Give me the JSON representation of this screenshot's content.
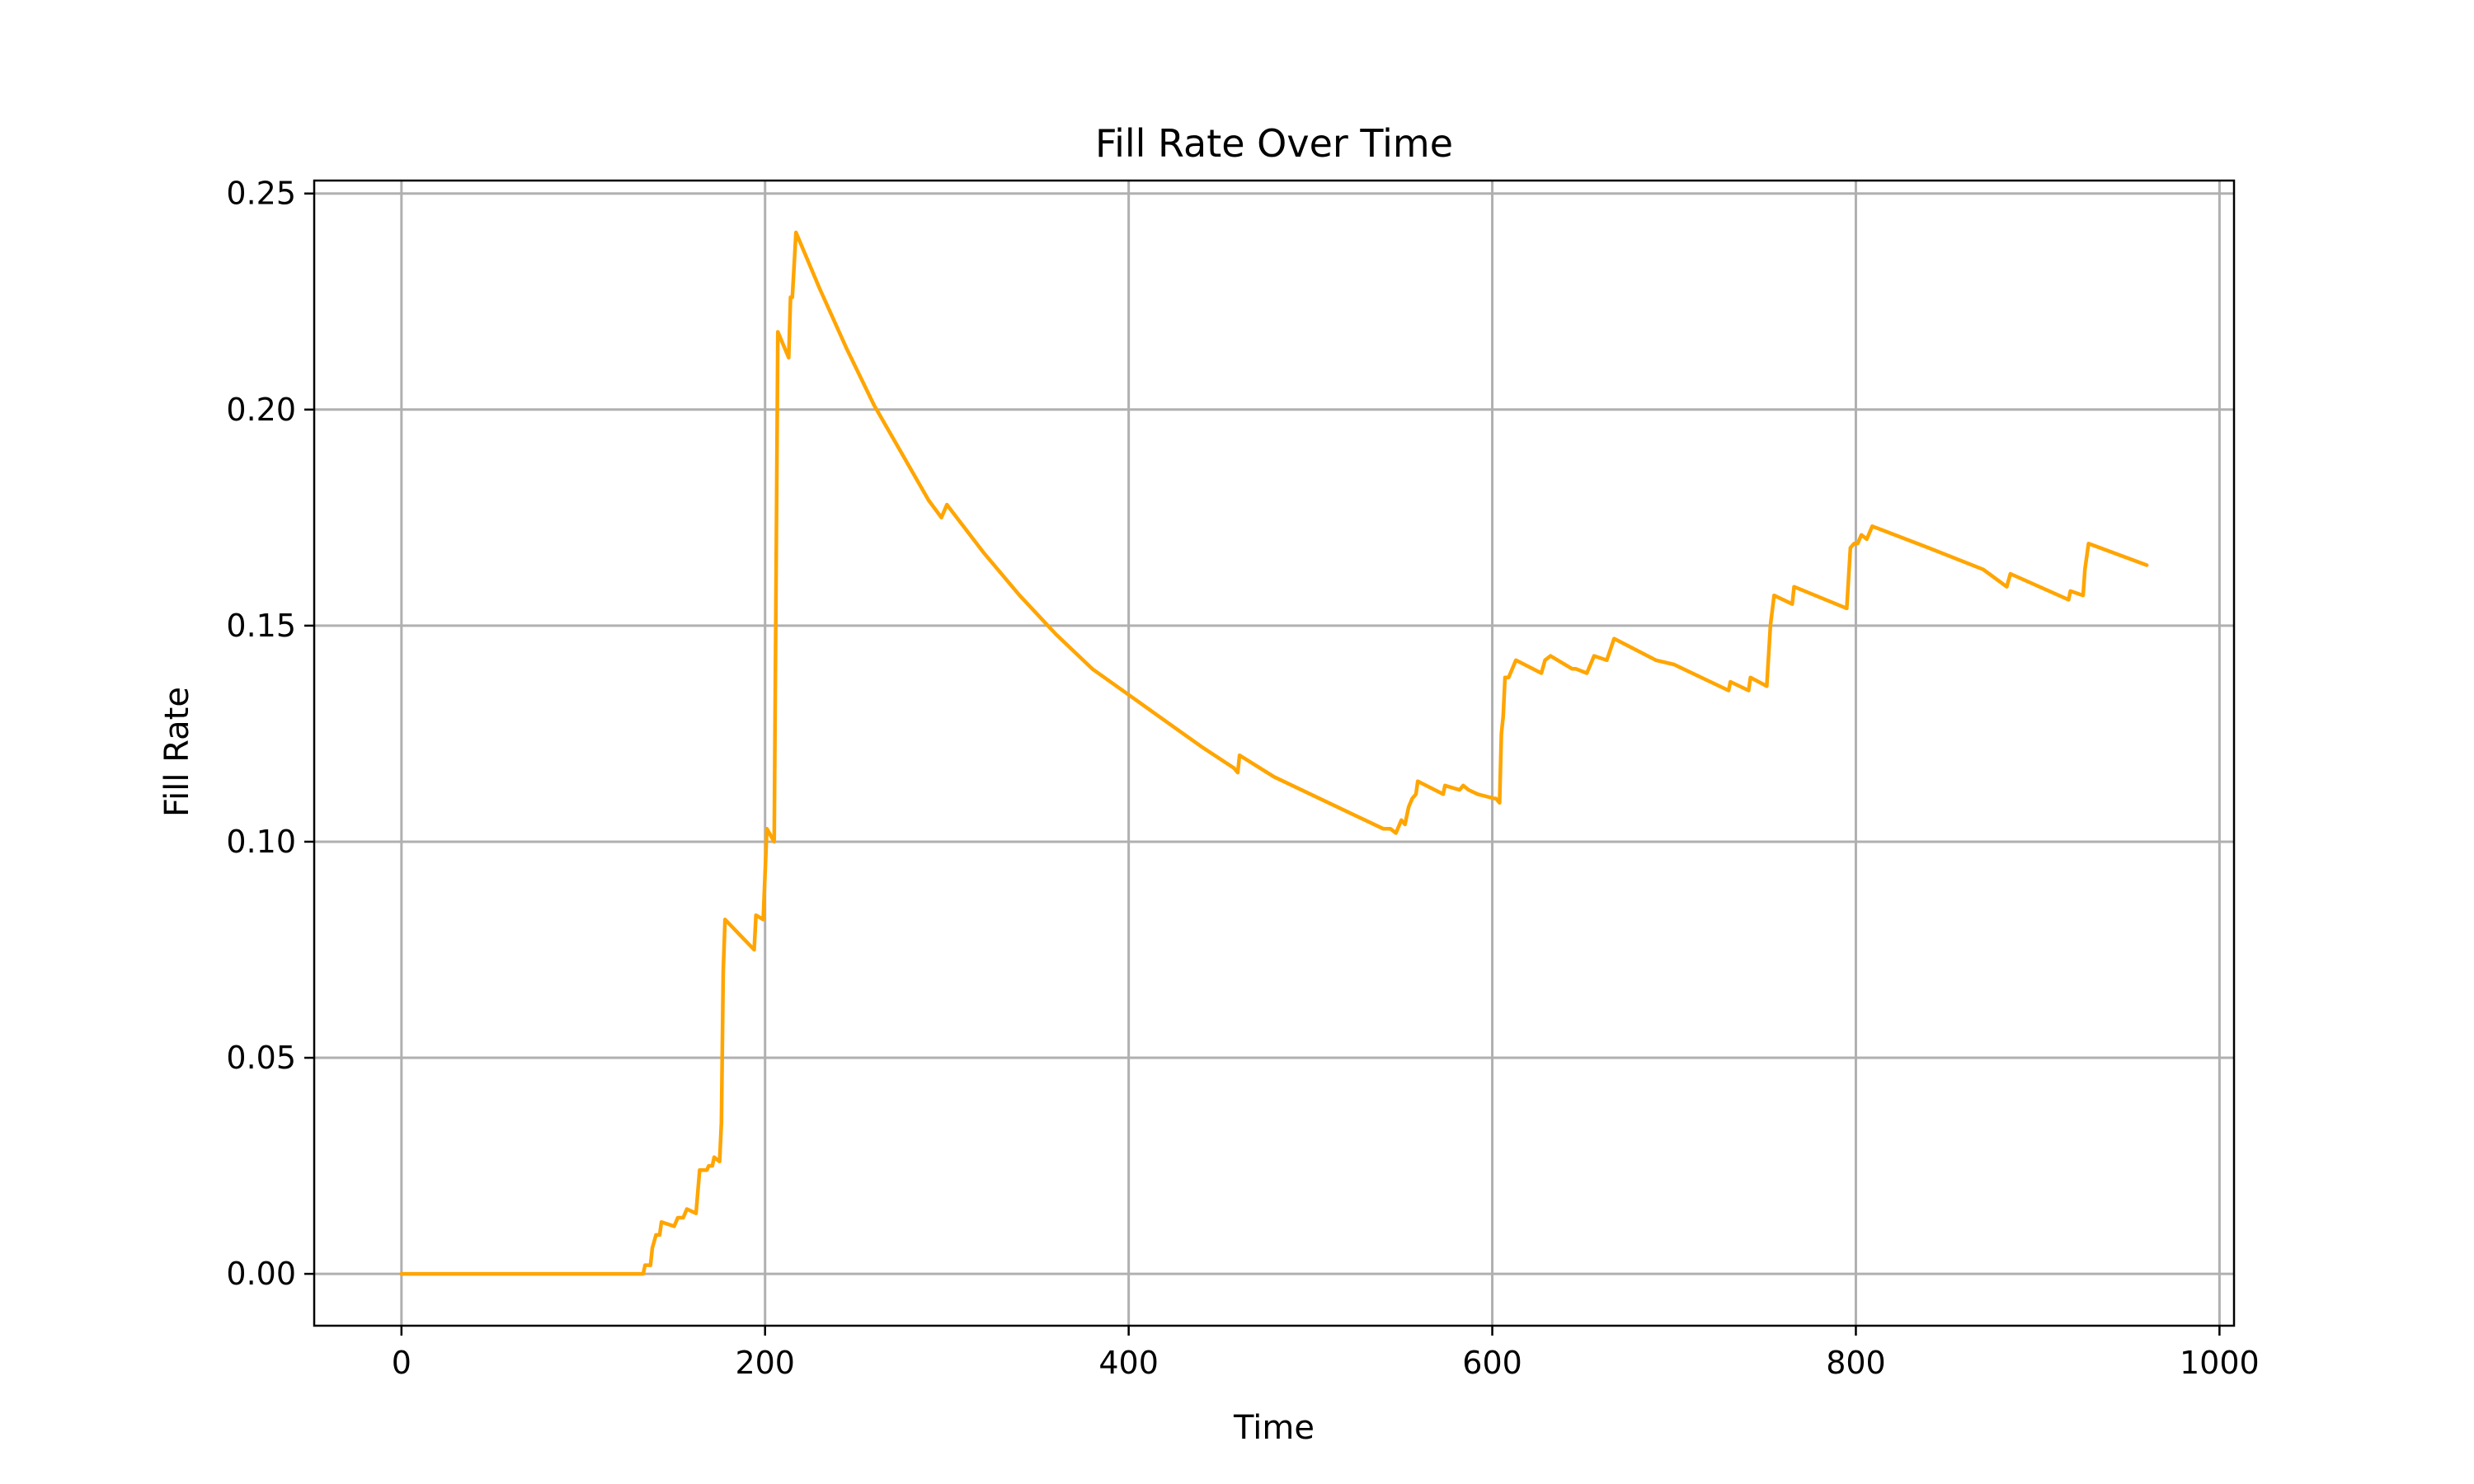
{
  "chart_data": {
    "type": "line",
    "title": "Fill Rate Over Time",
    "xlabel": "Time",
    "ylabel": "Fill Rate",
    "xlim": [
      -48,
      1008
    ],
    "ylim": [
      -0.012,
      0.253
    ],
    "xticks": [
      0,
      200,
      400,
      600,
      800,
      1000
    ],
    "xtick_labels": [
      "0",
      "200",
      "400",
      "600",
      "800",
      "1000"
    ],
    "yticks": [
      0.0,
      0.05,
      0.1,
      0.15,
      0.2,
      0.25
    ],
    "ytick_labels": [
      "0.00",
      "0.05",
      "0.10",
      "0.15",
      "0.20",
      "0.25"
    ],
    "grid": true,
    "legend": "none",
    "colors": {
      "line": "#ffa500",
      "grid": "#b0b0b0",
      "axes": "#000000",
      "background": "#ffffff"
    },
    "series": [
      {
        "color": "#ffa500",
        "points": [
          [
            0,
            0.0
          ],
          [
            133,
            0.0
          ],
          [
            134,
            0.002
          ],
          [
            137,
            0.002
          ],
          [
            138,
            0.006
          ],
          [
            140,
            0.009
          ],
          [
            142,
            0.009
          ],
          [
            143,
            0.012
          ],
          [
            150,
            0.011
          ],
          [
            152,
            0.013
          ],
          [
            155,
            0.013
          ],
          [
            157,
            0.015
          ],
          [
            162,
            0.014
          ],
          [
            164,
            0.024
          ],
          [
            168,
            0.024
          ],
          [
            169,
            0.025
          ],
          [
            171,
            0.025
          ],
          [
            172,
            0.027
          ],
          [
            175,
            0.026
          ],
          [
            176,
            0.035
          ],
          [
            177,
            0.07
          ],
          [
            178,
            0.082
          ],
          [
            194,
            0.075
          ],
          [
            195,
            0.083
          ],
          [
            199,
            0.082
          ],
          [
            201,
            0.103
          ],
          [
            205,
            0.1
          ],
          [
            207,
            0.218
          ],
          [
            213,
            0.212
          ],
          [
            214,
            0.226
          ],
          [
            215,
            0.226
          ],
          [
            217,
            0.241
          ],
          [
            230,
            0.228
          ],
          [
            245,
            0.214
          ],
          [
            260,
            0.201
          ],
          [
            275,
            0.19
          ],
          [
            290,
            0.179
          ],
          [
            297,
            0.175
          ],
          [
            300,
            0.178
          ],
          [
            320,
            0.167
          ],
          [
            340,
            0.157
          ],
          [
            360,
            0.148
          ],
          [
            380,
            0.14
          ],
          [
            400,
            0.134
          ],
          [
            420,
            0.128
          ],
          [
            440,
            0.122
          ],
          [
            458,
            0.117
          ],
          [
            460,
            0.116
          ],
          [
            461,
            0.12
          ],
          [
            480,
            0.115
          ],
          [
            500,
            0.111
          ],
          [
            520,
            0.107
          ],
          [
            540,
            0.103
          ],
          [
            544,
            0.103
          ],
          [
            547,
            0.102
          ],
          [
            550,
            0.105
          ],
          [
            552,
            0.104
          ],
          [
            554,
            0.108
          ],
          [
            556,
            0.11
          ],
          [
            558,
            0.111
          ],
          [
            559,
            0.114
          ],
          [
            573,
            0.111
          ],
          [
            574,
            0.113
          ],
          [
            582,
            0.112
          ],
          [
            584,
            0.113
          ],
          [
            587,
            0.112
          ],
          [
            592,
            0.111
          ],
          [
            601,
            0.11
          ],
          [
            602,
            0.11
          ],
          [
            604,
            0.109
          ],
          [
            605,
            0.125
          ],
          [
            606,
            0.129
          ],
          [
            607,
            0.138
          ],
          [
            609,
            0.138
          ],
          [
            611,
            0.14
          ],
          [
            613,
            0.142
          ],
          [
            627,
            0.139
          ],
          [
            629,
            0.142
          ],
          [
            632,
            0.143
          ],
          [
            644,
            0.14
          ],
          [
            646,
            0.14
          ],
          [
            652,
            0.139
          ],
          [
            656,
            0.143
          ],
          [
            663,
            0.142
          ],
          [
            667,
            0.147
          ],
          [
            690,
            0.142
          ],
          [
            700,
            0.141
          ],
          [
            730,
            0.135
          ],
          [
            731,
            0.137
          ],
          [
            741,
            0.135
          ],
          [
            742,
            0.138
          ],
          [
            751,
            0.136
          ],
          [
            753,
            0.15
          ],
          [
            755,
            0.157
          ],
          [
            765,
            0.155
          ],
          [
            766,
            0.159
          ],
          [
            795,
            0.154
          ],
          [
            797,
            0.168
          ],
          [
            799,
            0.169
          ],
          [
            801,
            0.169
          ],
          [
            803,
            0.171
          ],
          [
            806,
            0.17
          ],
          [
            809,
            0.173
          ],
          [
            840,
            0.168
          ],
          [
            870,
            0.163
          ],
          [
            883,
            0.159
          ],
          [
            885,
            0.162
          ],
          [
            917,
            0.156
          ],
          [
            918,
            0.158
          ],
          [
            925,
            0.157
          ],
          [
            926,
            0.163
          ],
          [
            928,
            0.169
          ],
          [
            960,
            0.164
          ]
        ]
      }
    ]
  }
}
